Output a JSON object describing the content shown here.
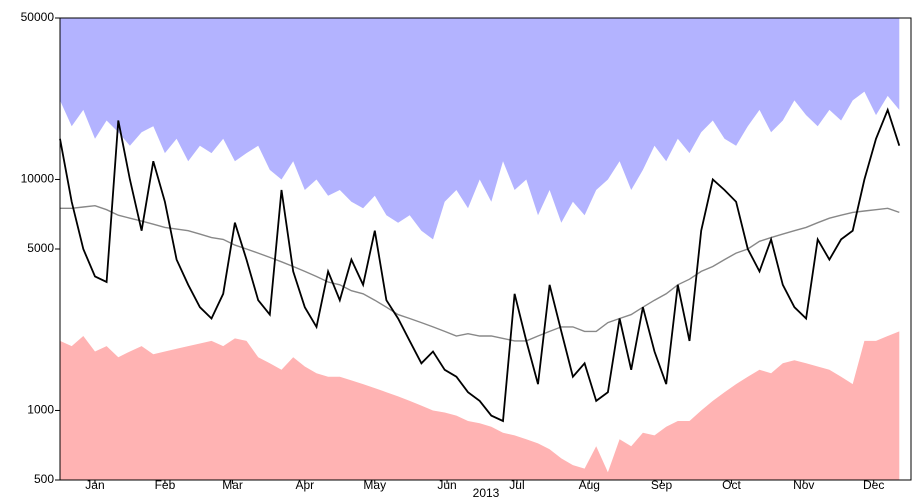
{
  "chart_data": {
    "type": "line",
    "xlabel": "2013",
    "yscale": "log",
    "xlim": [
      1,
      366
    ],
    "ylim": [
      500,
      50000
    ],
    "xticks": [
      {
        "value": 16,
        "label": "Jan"
      },
      {
        "value": 46,
        "label": "Feb"
      },
      {
        "value": 75,
        "label": "Mar"
      },
      {
        "value": 106,
        "label": "Apr"
      },
      {
        "value": 136,
        "label": "May"
      },
      {
        "value": 167,
        "label": "Jun"
      },
      {
        "value": 197,
        "label": "Jul"
      },
      {
        "value": 228,
        "label": "Aug"
      },
      {
        "value": 259,
        "label": "Sep"
      },
      {
        "value": 289,
        "label": "Oct"
      },
      {
        "value": 320,
        "label": "Nov"
      },
      {
        "value": 350,
        "label": "Dec"
      }
    ],
    "yticks": [
      500,
      1000,
      5000,
      10000,
      50000
    ],
    "x": [
      1,
      6,
      11,
      16,
      21,
      26,
      31,
      36,
      41,
      46,
      51,
      56,
      61,
      66,
      71,
      76,
      81,
      86,
      91,
      96,
      101,
      106,
      111,
      116,
      121,
      126,
      131,
      136,
      141,
      146,
      151,
      156,
      161,
      166,
      171,
      176,
      181,
      186,
      191,
      196,
      201,
      206,
      211,
      216,
      221,
      226,
      231,
      236,
      241,
      246,
      251,
      256,
      261,
      266,
      271,
      276,
      281,
      286,
      291,
      296,
      301,
      306,
      311,
      316,
      321,
      326,
      331,
      336,
      341,
      346,
      351,
      356,
      361
    ],
    "series": [
      {
        "color": "#b3b3ff",
        "fill": "top",
        "values": [
          22000,
          17000,
          20000,
          15000,
          18000,
          16000,
          14000,
          16000,
          17000,
          13000,
          15000,
          12000,
          14000,
          13000,
          15000,
          12000,
          13000,
          14000,
          11000,
          10000,
          12000,
          9000,
          10000,
          8500,
          9000,
          8000,
          7500,
          8500,
          7000,
          6500,
          7000,
          6000,
          5500,
          8000,
          9000,
          7500,
          10000,
          8000,
          12000,
          9000,
          10000,
          7000,
          9000,
          6500,
          8000,
          7000,
          9000,
          10000,
          12000,
          9000,
          11000,
          14000,
          12000,
          15000,
          13000,
          16000,
          18000,
          15000,
          14000,
          17000,
          20000,
          16000,
          18000,
          22000,
          19000,
          17000,
          20000,
          18000,
          22000,
          24000,
          19000,
          23000,
          20000
        ]
      },
      {
        "color": "#ffb3b3",
        "fill": "bottom",
        "values": [
          2000,
          1900,
          2100,
          1800,
          1900,
          1700,
          1800,
          1900,
          1750,
          1800,
          1850,
          1900,
          1950,
          2000,
          1900,
          2050,
          2000,
          1700,
          1600,
          1500,
          1700,
          1550,
          1450,
          1400,
          1400,
          1350,
          1300,
          1250,
          1200,
          1150,
          1100,
          1050,
          1000,
          980,
          950,
          900,
          880,
          850,
          800,
          780,
          750,
          720,
          680,
          620,
          580,
          560,
          700,
          540,
          750,
          700,
          800,
          780,
          850,
          900,
          900,
          1000,
          1100,
          1200,
          1300,
          1400,
          1500,
          1450,
          1600,
          1650,
          1600,
          1550,
          1500,
          1400,
          1300,
          2000,
          2000,
          2100,
          2200
        ]
      },
      {
        "color": "#888888",
        "values": [
          7500,
          7500,
          7600,
          7700,
          7400,
          7000,
          6800,
          6600,
          6400,
          6200,
          6100,
          6000,
          5800,
          5600,
          5500,
          5200,
          5000,
          4800,
          4600,
          4400,
          4200,
          4000,
          3800,
          3600,
          3500,
          3300,
          3200,
          3000,
          2800,
          2600,
          2500,
          2400,
          2300,
          2200,
          2100,
          2150,
          2100,
          2100,
          2050,
          2000,
          2000,
          2100,
          2200,
          2300,
          2300,
          2200,
          2200,
          2400,
          2500,
          2600,
          2800,
          3000,
          3200,
          3500,
          3700,
          4000,
          4200,
          4500,
          4800,
          5000,
          5400,
          5600,
          5800,
          6000,
          6200,
          6500,
          6800,
          7000,
          7200,
          7300,
          7400,
          7500,
          7200
        ]
      },
      {
        "color": "#000000",
        "values": [
          15000,
          8000,
          5000,
          3800,
          3600,
          18000,
          10000,
          6000,
          12000,
          8000,
          4500,
          3500,
          2800,
          2500,
          3200,
          6500,
          4500,
          3000,
          2600,
          9000,
          4000,
          2800,
          2300,
          4000,
          3000,
          4500,
          3500,
          6000,
          3000,
          2500,
          2000,
          1600,
          1800,
          1500,
          1400,
          1200,
          1100,
          950,
          900,
          3200,
          2000,
          1300,
          3500,
          2200,
          1400,
          1600,
          1100,
          1200,
          2500,
          1500,
          2800,
          1800,
          1300,
          3500,
          2000,
          6000,
          10000,
          9000,
          8000,
          5000,
          4000,
          5500,
          3500,
          2800,
          2500,
          5500,
          4500,
          5500,
          6000,
          10000,
          15000,
          20000,
          14000
        ]
      }
    ]
  }
}
